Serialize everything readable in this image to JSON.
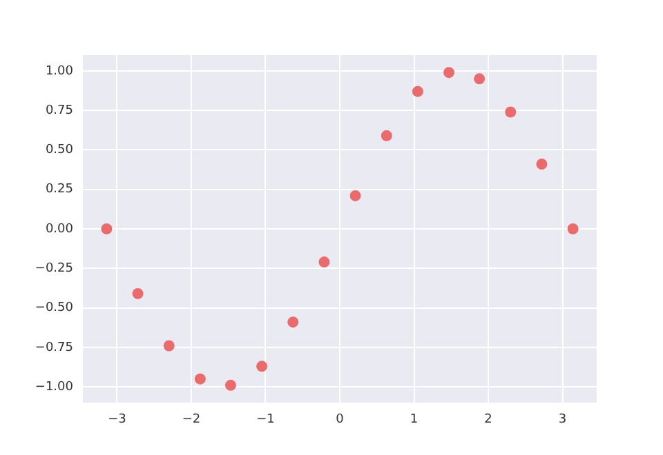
{
  "chart_data": {
    "type": "scatter",
    "x": [
      -3.14,
      -2.72,
      -2.3,
      -1.88,
      -1.47,
      -1.05,
      -0.63,
      -0.21,
      0.21,
      0.63,
      1.05,
      1.47,
      1.88,
      2.3,
      2.72,
      3.14
    ],
    "series": [
      {
        "color": "#ea6b6b",
        "values": [
          0,
          -0.41,
          -0.74,
          -0.95,
          -0.99,
          -0.87,
          -0.59,
          -0.21,
          0.21,
          0.59,
          0.87,
          0.99,
          0.95,
          0.74,
          0.41,
          0
        ]
      }
    ],
    "xlim": [
      -3.46,
      3.46
    ],
    "ylim": [
      -1.1,
      1.1
    ],
    "xticks": [
      {
        "value": -3,
        "label": "−3"
      },
      {
        "value": -2,
        "label": "−2"
      },
      {
        "value": -1,
        "label": "−1"
      },
      0,
      1,
      2,
      3
    ],
    "yticks": [
      {
        "value": -1,
        "label": "−1.00"
      },
      {
        "value": -0.75,
        "label": "−0.75"
      },
      {
        "value": -0.5,
        "label": "−0.50"
      },
      {
        "value": -0.25,
        "label": "−0.25"
      },
      {
        "value": 0,
        "label": "0.00"
      },
      {
        "value": 0.25,
        "label": "0.25"
      },
      {
        "value": 0.5,
        "label": "0.50"
      },
      {
        "value": 0.75,
        "label": "0.75"
      },
      {
        "value": 1,
        "label": "1.00"
      }
    ],
    "grid": true,
    "marker": "circle",
    "legend": false
  }
}
